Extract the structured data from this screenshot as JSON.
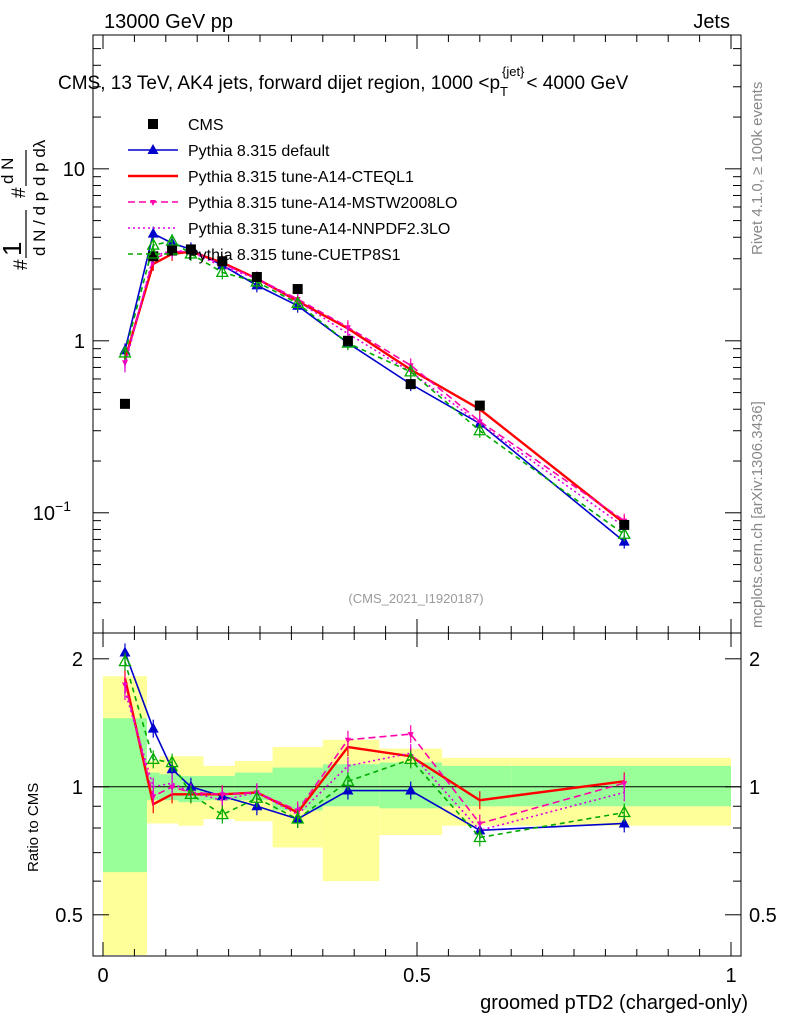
{
  "header": {
    "left": "13000 GeV pp",
    "right": "Jets"
  },
  "chart_data": {
    "type": "line",
    "title": "CMS, 13 TeV, AK4 jets, forward dijet region, 1000 <p_T^jet < 4000 GeV",
    "title_prefix": "CMS, 13 TeV, AK4 jets, forward dijet region, 1000 <p",
    "title_sub": "T",
    "title_sup": "{jet}",
    "title_suffix": "< 4000 GeV",
    "xlabel": "groomed pTD2 (charged-only)",
    "ylabel_top": "1/(dN/dp_T) d2N/(dp_T dlambda)",
    "ylabel_bottom": "Ratio to CMS",
    "xlim": [
      0,
      1
    ],
    "ylim": [
      0.02,
      60
    ],
    "ratio_ylim": [
      0.4,
      2.3
    ],
    "yscale": "log",
    "x_ticks": [
      "0",
      "0.5",
      "1"
    ],
    "y_ticks": [
      "10^-1",
      "1",
      "10"
    ],
    "ratio_ticks": [
      "0.5",
      "1",
      "2"
    ],
    "watermark": "(CMS_2021_I1920187)",
    "side_text_top": "Rivet 4.1.0, ≥ 100k events",
    "side_text_bottom": "mcplots.cern.ch [arXiv:1306.3436]",
    "x": [
      0.035,
      0.08,
      0.11,
      0.14,
      0.19,
      0.245,
      0.31,
      0.39,
      0.49,
      0.6,
      0.83
    ],
    "bin_edges": [
      0,
      0.07,
      0.09,
      0.12,
      0.16,
      0.21,
      0.27,
      0.35,
      0.44,
      0.54,
      0.65,
      1.0
    ],
    "data": {
      "name": "CMS",
      "values": [
        0.43,
        3.1,
        3.35,
        3.4,
        2.9,
        2.35,
        2.0,
        1.0,
        0.56,
        0.42,
        0.085
      ]
    },
    "uncertainty_bands": {
      "green_low": [
        0.63,
        0.93,
        0.93,
        0.92,
        0.93,
        0.93,
        0.88,
        0.9,
        0.89,
        0.9,
        0.9
      ],
      "green_high": [
        1.45,
        1.08,
        1.07,
        1.06,
        1.06,
        1.08,
        1.11,
        1.13,
        1.14,
        1.12,
        1.12
      ],
      "yellow_low": [
        0.4,
        0.82,
        0.82,
        0.81,
        0.84,
        0.83,
        0.72,
        0.6,
        0.77,
        0.81,
        0.81
      ],
      "yellow_high": [
        1.82,
        1.15,
        1.18,
        1.18,
        1.12,
        1.15,
        1.24,
        1.29,
        1.23,
        1.17,
        1.17
      ]
    },
    "series": [
      {
        "name": "Pythia 8.315 default",
        "color": "#0000cc",
        "dash": "",
        "marker": "triangle-filled",
        "values": [
          0.88,
          4.2,
          3.7,
          3.4,
          2.75,
          2.1,
          1.6,
          0.97,
          0.56,
          0.33,
          0.068
        ],
        "ratio": [
          2.07,
          1.37,
          1.1,
          1.0,
          0.95,
          0.9,
          0.84,
          0.98,
          0.98,
          0.79,
          0.82
        ]
      },
      {
        "name": "Pythia 8.315 tune-A14-CTEQL1",
        "color": "#ff0000",
        "dash": "",
        "marker": "none",
        "values": [
          0.78,
          2.8,
          3.2,
          3.3,
          2.85,
          2.3,
          1.7,
          1.18,
          0.68,
          0.4,
          0.087
        ],
        "ratio": [
          1.8,
          0.91,
          0.96,
          0.96,
          0.96,
          0.97,
          0.87,
          1.24,
          1.18,
          0.93,
          1.03
        ]
      },
      {
        "name": "Pythia 8.315 tune-A14-MSTW2008LO",
        "color": "#ff00aa",
        "dash": "7,4",
        "marker": "triangle-down",
        "values": [
          0.75,
          3.0,
          3.3,
          3.3,
          2.8,
          2.3,
          1.75,
          1.2,
          0.72,
          0.34,
          0.09
        ],
        "ratio": [
          1.74,
          0.95,
          1.0,
          0.97,
          0.96,
          0.97,
          0.88,
          1.29,
          1.33,
          0.82,
          1.02
        ]
      },
      {
        "name": "Pythia 8.315 tune-A14-NNPDF2.3LO",
        "color": "#dd00dd",
        "dash": "2,3",
        "marker": "none",
        "values": [
          0.72,
          3.1,
          3.35,
          3.3,
          2.7,
          2.3,
          1.7,
          1.1,
          0.66,
          0.33,
          0.083
        ],
        "ratio": [
          1.68,
          1.0,
          1.02,
          0.97,
          0.93,
          0.97,
          0.86,
          1.12,
          1.2,
          0.79,
          0.97
        ]
      },
      {
        "name": "Pythia 8.315 tune-CUETP8S1",
        "color": "#00aa00",
        "dash": "5,4",
        "marker": "triangle-open",
        "values": [
          0.85,
          3.6,
          3.8,
          3.2,
          2.5,
          2.2,
          1.65,
          0.97,
          0.66,
          0.3,
          0.075
        ],
        "ratio": [
          1.97,
          1.16,
          1.14,
          0.96,
          0.86,
          0.94,
          0.84,
          1.03,
          1.16,
          0.76,
          0.87
        ]
      }
    ]
  }
}
